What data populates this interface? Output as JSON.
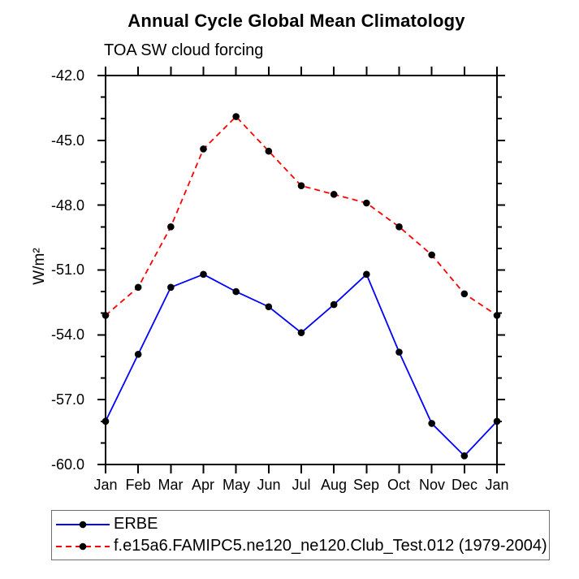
{
  "chart_data": {
    "type": "line",
    "title": "Annual Cycle Global Mean Climatology",
    "subtitle": "TOA SW cloud forcing",
    "ylabel": "W/m²",
    "xlabel": "",
    "categories": [
      "Jan",
      "Feb",
      "Mar",
      "Apr",
      "May",
      "Jun",
      "Jul",
      "Aug",
      "Sep",
      "Oct",
      "Nov",
      "Dec",
      "Jan"
    ],
    "yticks": [
      "-42.0",
      "-45.0",
      "-48.0",
      "-51.0",
      "-54.0",
      "-57.0",
      "-60.0"
    ],
    "ylim": [
      -60.0,
      -42.0
    ],
    "y_major_step": 3.0,
    "y_minor_step": 1.0,
    "grid": "off",
    "legend_position": "bottom",
    "marker": {
      "shape": "circle",
      "color": "#000000"
    },
    "axis_color": "#000000",
    "series": [
      {
        "name": "ERBE",
        "color": "#0000ff",
        "style": "solid",
        "values": [
          -58.0,
          -54.9,
          -51.8,
          -51.2,
          -52.0,
          -52.7,
          -53.9,
          -52.6,
          -51.2,
          -54.8,
          -58.1,
          -59.6,
          -58.0
        ]
      },
      {
        "name": "f.e15a6.FAMIPC5.ne120_ne120.Club_Test.012 (1979-2004)",
        "color": "#ff0000",
        "style": "dashed",
        "values": [
          -53.1,
          -51.8,
          -49.0,
          -45.4,
          -43.9,
          -45.5,
          -47.1,
          -47.5,
          -47.9,
          -49.0,
          -50.3,
          -52.1,
          -53.1
        ]
      }
    ]
  }
}
